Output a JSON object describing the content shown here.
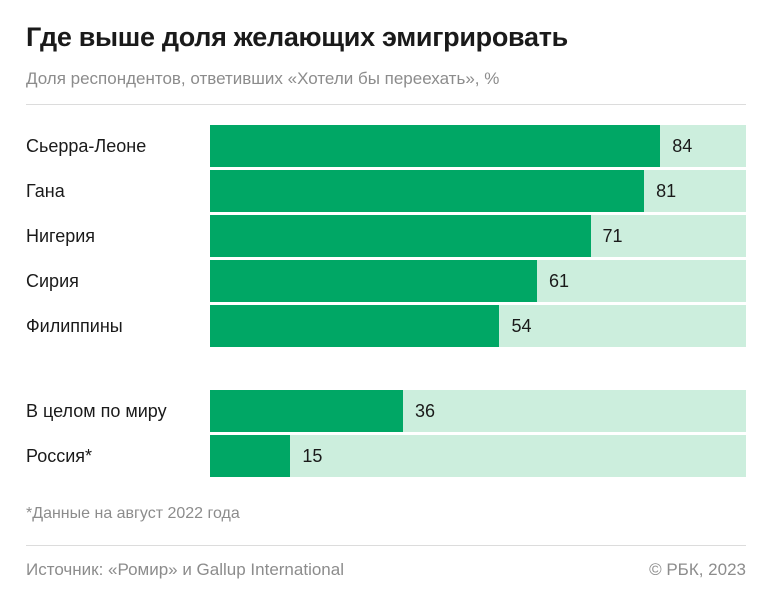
{
  "chart_data": {
    "type": "bar",
    "orientation": "horizontal",
    "title": "Где выше доля желающих эмигрировать",
    "subtitle": "Доля респондентов, ответивших «Хотели бы переехать», %",
    "groups": [
      {
        "categories": [
          "Сьерра-Леоне",
          "Гана",
          "Нигерия",
          "Сирия",
          "Филиппины"
        ],
        "values": [
          84,
          81,
          71,
          61,
          54
        ]
      },
      {
        "categories": [
          "В целом по миру",
          "Россия*"
        ],
        "values": [
          36,
          15
        ]
      }
    ],
    "xlim": [
      0,
      100
    ],
    "grid": false,
    "colors": {
      "bar": "#00a765",
      "track": "#cceedd"
    },
    "footnote": "*Данные на август 2022 года",
    "source": "Источник: «Ромир» и Gallup International",
    "copyright": "© РБК, 2023"
  }
}
